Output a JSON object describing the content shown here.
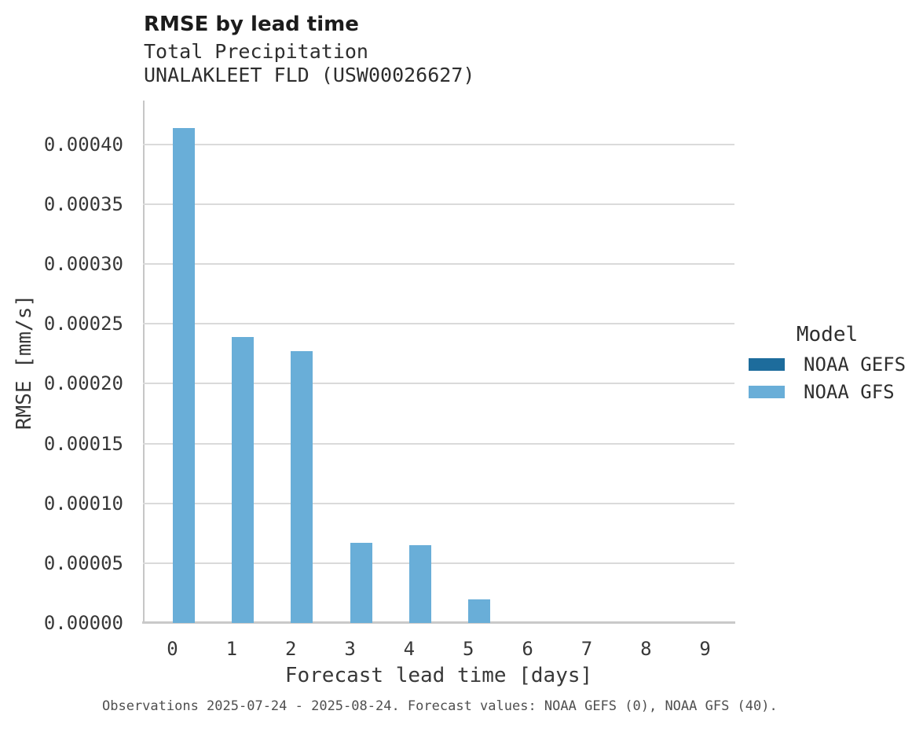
{
  "chart_data": {
    "type": "bar",
    "title": "RMSE by lead time",
    "subtitle_variable": "Total Precipitation",
    "subtitle_station": "UNALAKLEET FLD (USW00026627)",
    "xlabel": "Forecast lead time [days]",
    "ylabel": "RMSE [mm/s]",
    "legend_title": "Model",
    "legend_position": "center right",
    "grid": true,
    "categories": [
      0,
      1,
      2,
      3,
      4,
      5,
      6,
      7,
      8,
      9
    ],
    "series": [
      {
        "name": "NOAA GEFS",
        "color": "#1d6c9c",
        "values": [
          null,
          null,
          null,
          null,
          null,
          null,
          null,
          null,
          null,
          null
        ]
      },
      {
        "name": "NOAA GFS",
        "color": "#69aed8",
        "values": [
          0.000414,
          0.000239,
          0.000227,
          6.7e-05,
          6.5e-05,
          2e-05,
          0,
          0,
          0,
          0
        ]
      }
    ],
    "ylim": [
      0,
      0.000436
    ],
    "yticks": [
      0.0,
      5e-05,
      0.0001,
      0.00015,
      0.0002,
      0.00025,
      0.0003,
      0.00035,
      0.0004
    ],
    "footnote": "Observations 2025-07-24 - 2025-08-24. Forecast values: NOAA GEFS (0), NOAA GFS (40)."
  },
  "colors": {
    "background": "#ffffff",
    "gridline": "#dadada",
    "axis_spine": "#c6c6c6",
    "title_text": "#1c1c1c",
    "tick_text": "#383838",
    "footnote_text": "#4f4f4f",
    "noaa_gefs": "#1d6c9c",
    "noaa_gfs": "#69aed8"
  }
}
